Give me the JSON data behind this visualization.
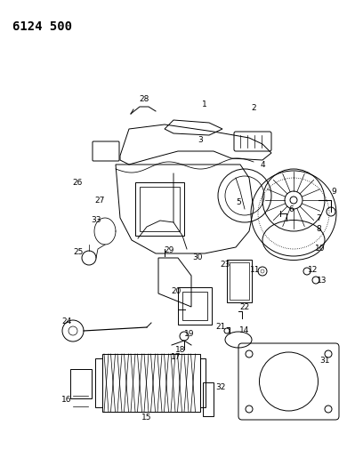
{
  "title": "6124 500",
  "bg_color": "#ffffff",
  "fig_width": 4.08,
  "fig_height": 5.33,
  "dpi": 100,
  "title_fontsize": 10,
  "label_fontsize": 6.5,
  "lw": 0.7
}
